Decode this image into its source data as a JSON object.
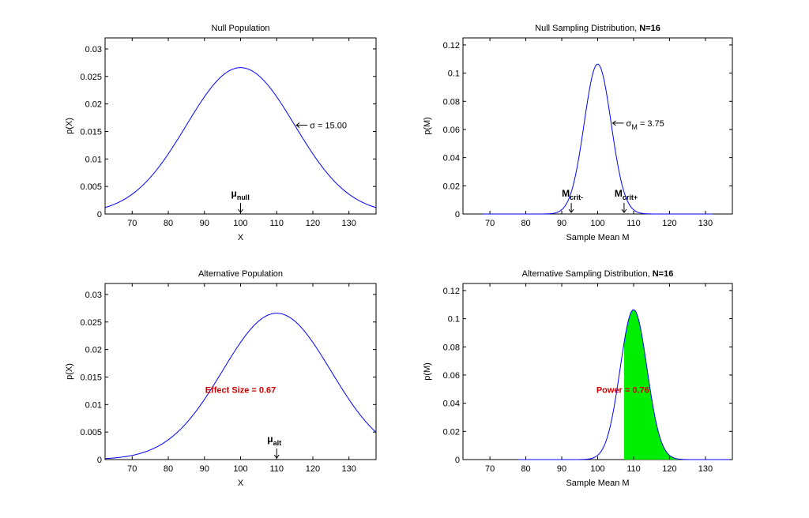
{
  "figure": {
    "background": "#ffffff",
    "curve_color": "#0000ff",
    "shade_color": "#00ee00"
  },
  "chart_data": [
    {
      "id": "null-pop",
      "type": "line",
      "title": "Null Population",
      "title_bold": "",
      "xlabel": "X",
      "ylabel": "p(X)",
      "xlim": [
        62.5,
        137.5
      ],
      "ylim": [
        0,
        0.032
      ],
      "xticks": [
        70,
        80,
        90,
        100,
        110,
        120,
        130
      ],
      "yticks": [
        0,
        0.005,
        0.01,
        0.015,
        0.02,
        0.025,
        0.03
      ],
      "ytick_labels": [
        "0",
        "0.005",
        "0.01",
        "0.015",
        "0.02",
        "0.025",
        "0.03"
      ],
      "series": [
        {
          "mean": 100,
          "sd": 15,
          "x_range": [
            62.5,
            137.5
          ]
        }
      ],
      "annotations": {
        "sigma": {
          "symbol": "σ",
          "sub": "",
          "text": " = 15.00"
        },
        "markers": [
          {
            "main": "μ",
            "sub": "null",
            "x": 100
          }
        ]
      }
    },
    {
      "id": "null-samp",
      "type": "line",
      "title": "Null Sampling Distribution,",
      "title_bold": "N=16",
      "xlabel": "Sample Mean M",
      "ylabel": "p(M)",
      "xlim": [
        62.5,
        137.5
      ],
      "ylim": [
        0,
        0.125
      ],
      "xticks": [
        70,
        80,
        90,
        100,
        110,
        120,
        130
      ],
      "yticks": [
        0,
        0.02,
        0.04,
        0.06,
        0.08,
        0.1,
        0.12
      ],
      "ytick_labels": [
        "0",
        "0.02",
        "0.04",
        "0.06",
        "0.08",
        "0.1",
        "0.12"
      ],
      "series": [
        {
          "mean": 100,
          "sd": 3.75,
          "x_range": [
            68,
            132
          ]
        }
      ],
      "annotations": {
        "sigma": {
          "symbol": "σ",
          "sub": "M",
          "text": " = 3.75"
        },
        "markers": [
          {
            "main": "M",
            "sub": "crit-",
            "x": 92.65
          },
          {
            "main": "M",
            "sub": "crit+",
            "x": 107.35
          }
        ]
      }
    },
    {
      "id": "alt-pop",
      "type": "line",
      "title": "Alternative Population",
      "title_bold": "",
      "xlabel": "X",
      "ylabel": "p(X)",
      "xlim": [
        62.5,
        137.5
      ],
      "ylim": [
        0,
        0.032
      ],
      "xticks": [
        70,
        80,
        90,
        100,
        110,
        120,
        130
      ],
      "yticks": [
        0,
        0.005,
        0.01,
        0.015,
        0.02,
        0.025,
        0.03
      ],
      "ytick_labels": [
        "0",
        "0.005",
        "0.01",
        "0.015",
        "0.02",
        "0.025",
        "0.03"
      ],
      "series": [
        {
          "mean": 110,
          "sd": 15,
          "x_range": [
            62.5,
            137.5
          ]
        }
      ],
      "annotations": {
        "center_text": "Effect Size = 0.67",
        "markers": [
          {
            "main": "μ",
            "sub": "alt",
            "x": 110
          }
        ]
      }
    },
    {
      "id": "alt-samp",
      "type": "area",
      "title": "Alternative Sampling Distribution,",
      "title_bold": "N=16",
      "xlabel": "Sample Mean M",
      "ylabel": "p(M)",
      "xlim": [
        62.5,
        137.5
      ],
      "ylim": [
        0,
        0.125
      ],
      "xticks": [
        70,
        80,
        90,
        100,
        110,
        120,
        130
      ],
      "yticks": [
        0,
        0.02,
        0.04,
        0.06,
        0.08,
        0.1,
        0.12
      ],
      "ytick_labels": [
        "0",
        "0.02",
        "0.04",
        "0.06",
        "0.08",
        "0.1",
        "0.12"
      ],
      "series": [
        {
          "mean": 110,
          "sd": 3.75,
          "x_range": [
            78,
            137.5
          ],
          "shade_from": 107.35
        }
      ],
      "annotations": {
        "center_text": "Power = 0.76",
        "markers": []
      }
    }
  ]
}
